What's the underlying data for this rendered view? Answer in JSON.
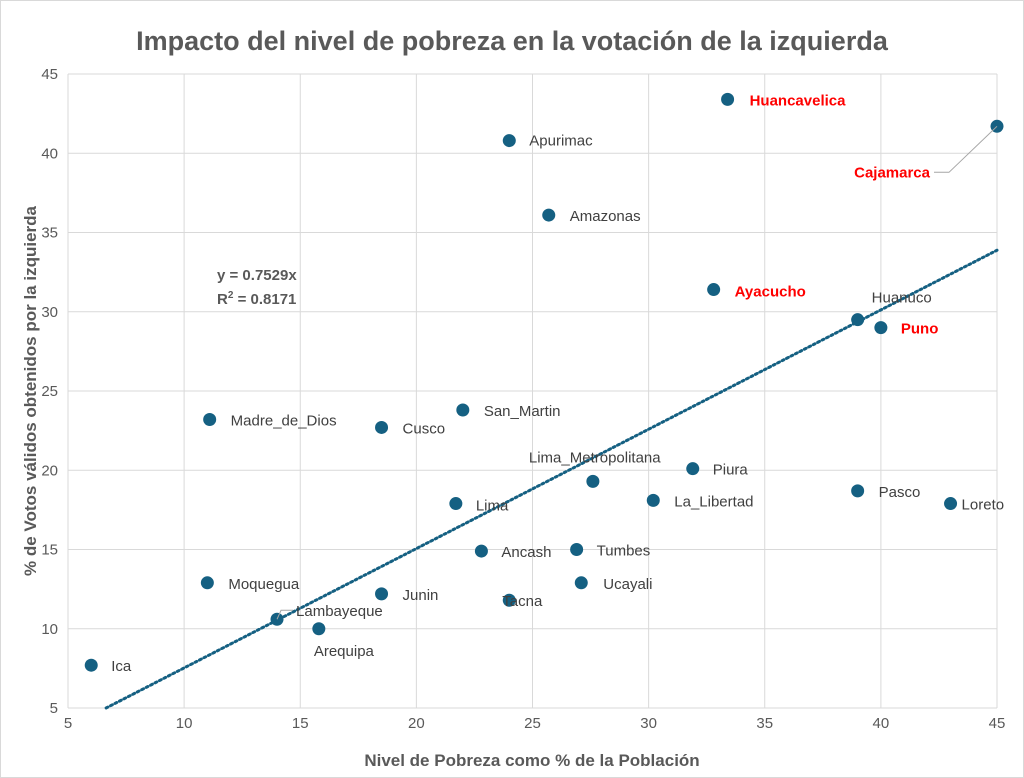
{
  "chart_data": {
    "type": "scatter",
    "title": "Impacto del nivel de pobreza en la votación de la izquierda",
    "xlabel": "Nivel de Pobreza como % de la Población",
    "ylabel": "% de Votos válidos obtenidos por la izquierda",
    "xlim": [
      5,
      45
    ],
    "ylim": [
      5,
      45
    ],
    "xticks": [
      5,
      10,
      15,
      20,
      25,
      30,
      35,
      40,
      45
    ],
    "yticks": [
      5,
      10,
      15,
      20,
      25,
      30,
      35,
      40,
      45
    ],
    "grid": true,
    "point_color": "#156082",
    "highlight_color": "#ff0000",
    "trendline": {
      "type": "linear",
      "slope": 0.7529,
      "intercept": 0,
      "equation": "y = 0.7529x",
      "r2_label": "R",
      "r2_sup": "2",
      "r2_value": " = 0.8171",
      "style": "dotted"
    },
    "points": [
      {
        "name": "Huancavelica",
        "x": 33.4,
        "y": 43.4,
        "highlight": true
      },
      {
        "name": "Cajamarca",
        "x": 45.0,
        "y": 41.7,
        "highlight": true
      },
      {
        "name": "Apurimac",
        "x": 24.0,
        "y": 40.8
      },
      {
        "name": "Amazonas",
        "x": 25.7,
        "y": 36.1
      },
      {
        "name": "Ayacucho",
        "x": 32.8,
        "y": 31.4,
        "highlight": true
      },
      {
        "name": "Huanuco",
        "x": 39.0,
        "y": 29.5
      },
      {
        "name": "Puno",
        "x": 40.0,
        "y": 29.0,
        "highlight": true
      },
      {
        "name": "Madre_de_Dios",
        "x": 11.1,
        "y": 23.2
      },
      {
        "name": "Cusco",
        "x": 18.5,
        "y": 22.7
      },
      {
        "name": "San_Martin",
        "x": 22.0,
        "y": 23.8
      },
      {
        "name": "Lima_Metropolitana",
        "x": 27.6,
        "y": 19.3
      },
      {
        "name": "Piura",
        "x": 31.9,
        "y": 20.1
      },
      {
        "name": "La_Libertad",
        "x": 30.2,
        "y": 18.1
      },
      {
        "name": "Pasco",
        "x": 39.0,
        "y": 18.7
      },
      {
        "name": "Loreto",
        "x": 43.0,
        "y": 17.9
      },
      {
        "name": "Lima",
        "x": 21.7,
        "y": 17.9
      },
      {
        "name": "Ancash",
        "x": 22.8,
        "y": 14.9
      },
      {
        "name": "Tumbes",
        "x": 26.9,
        "y": 15.0
      },
      {
        "name": "Ucayali",
        "x": 27.1,
        "y": 12.9
      },
      {
        "name": "Tacna",
        "x": 24.0,
        "y": 11.8
      },
      {
        "name": "Junin",
        "x": 18.5,
        "y": 12.2
      },
      {
        "name": "Moquegua",
        "x": 11.0,
        "y": 12.9
      },
      {
        "name": "Lambayeque",
        "x": 14.0,
        "y": 10.6
      },
      {
        "name": "Arequipa",
        "x": 15.8,
        "y": 10.0
      },
      {
        "name": "Ica",
        "x": 6.0,
        "y": 7.7
      }
    ]
  }
}
